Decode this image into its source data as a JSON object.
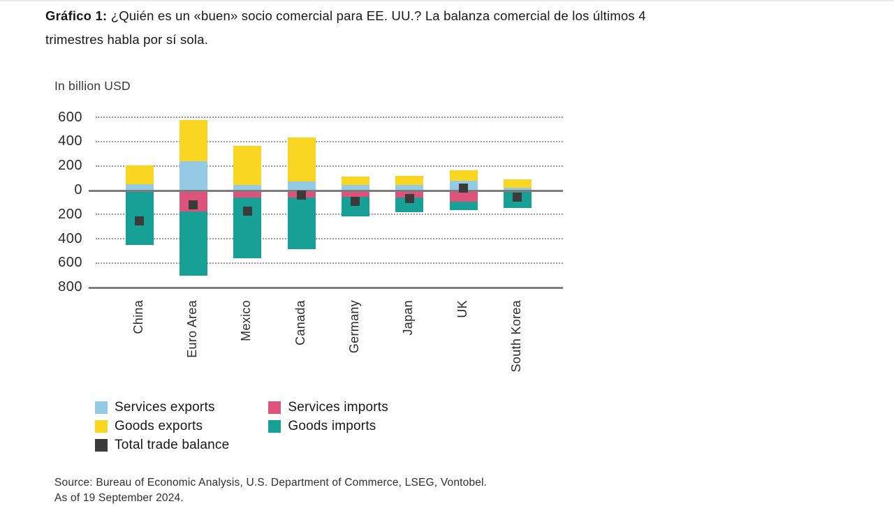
{
  "page": {
    "title_bold": "Gráfico 1:",
    "title_line1_rest": " ¿Quién es un «buen» socio comercial para EE. UU.? La balanza comercial de los últimos 4",
    "title_line2": "trimestres habla por sí sola.",
    "source_line1": "Source: Bureau of Economic Analysis, U.S. Department of Commerce, LSEG, Vontobel.",
    "source_line2": "As of 19 September 2024."
  },
  "colors": {
    "services_exports": "#94CAE4",
    "goods_exports": "#F8D622",
    "services_imports": "#DE537B",
    "goods_imports": "#17A095",
    "total_trade_balance": "#3B3B3B",
    "axis_line": "#7c7c7c"
  },
  "chart_data": {
    "type": "bar",
    "stacked": true,
    "title": "In billion USD",
    "categories": [
      "China",
      "Euro Area",
      "Mexico",
      "Canada",
      "Germany",
      "Japan",
      "UK",
      "South Korea"
    ],
    "series": [
      {
        "name": "Services exports",
        "role": "stack_positive",
        "color": "#94CAE4",
        "values": [
          50,
          240,
          45,
          75,
          45,
          45,
          80,
          25
        ]
      },
      {
        "name": "Goods exports",
        "role": "stack_positive",
        "color": "#F8D622",
        "values": [
          155,
          340,
          325,
          360,
          70,
          75,
          85,
          65
        ]
      },
      {
        "name": "Services imports",
        "role": "stack_negative",
        "color": "#DE537B",
        "values": [
          0,
          -170,
          -60,
          -60,
          -50,
          -55,
          -90,
          0
        ]
      },
      {
        "name": "Goods imports",
        "role": "stack_negative",
        "color": "#17A095",
        "values": [
          -450,
          -530,
          -495,
          -420,
          -160,
          -125,
          -70,
          -145
        ]
      },
      {
        "name": "Total trade balance",
        "role": "marker",
        "color": "#3B3B3B",
        "values": [
          -250,
          -118,
          -170,
          -40,
          -90,
          -65,
          20,
          -55
        ]
      }
    ],
    "y_ticks": [
      600,
      400,
      200,
      0,
      -200,
      -400,
      -600,
      -800
    ],
    "ylim": [
      -800,
      600
    ],
    "y_tick_label_style": "absolute-values",
    "grid": "dotted-horizontal",
    "solid_lines_at": [
      0,
      -800
    ],
    "legend_position": "bottom-left"
  },
  "legend": {
    "items": [
      {
        "label": "Services exports",
        "color": "#94CAE4"
      },
      {
        "label": "Goods exports",
        "color": "#F8D622"
      },
      {
        "label": "Total trade balance",
        "color": "#3B3B3B"
      },
      {
        "label": "Services imports",
        "color": "#DE537B"
      },
      {
        "label": "Goods imports",
        "color": "#17A095"
      }
    ]
  }
}
